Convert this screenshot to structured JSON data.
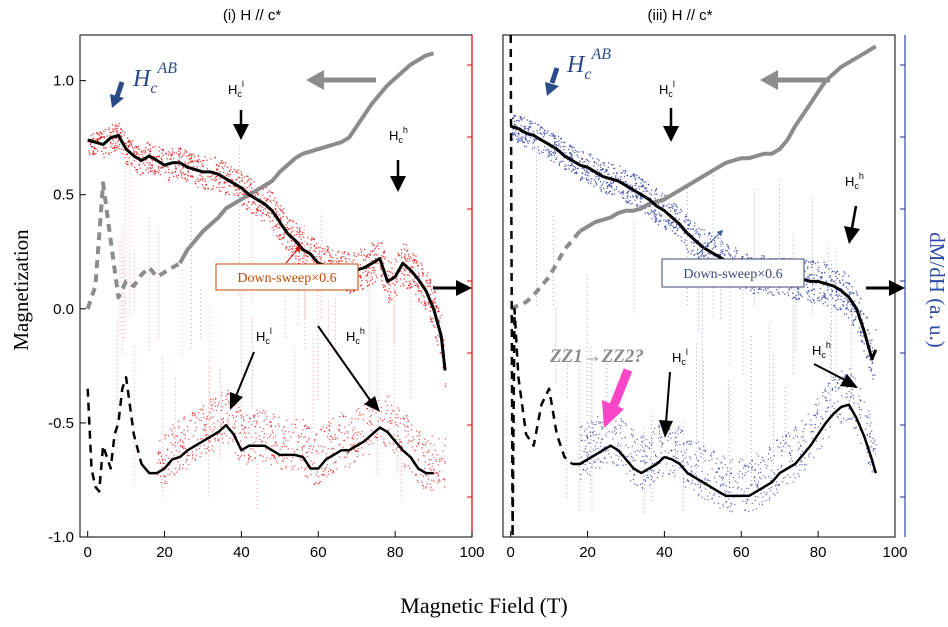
{
  "figure": {
    "xlabel": "Magnetic Field (T)",
    "ylabel_left": "Magnetization",
    "ylabel_right": "dM/dH (a. u.)"
  },
  "colors": {
    "red_scatter": "#e00000",
    "blue_scatter": "#1a2a9a",
    "gray_curve": "#8c8c8c",
    "black_curve": "#000000",
    "blue_text": "#2a4a8a",
    "magenta_arrow": "#ff44c8",
    "down_sweep_left_text": "#c04a00",
    "down_sweep_right_text": "#3a4a7a"
  },
  "chart_data": [
    {
      "panel": "left",
      "type": "line",
      "title": "(i) H // c*",
      "xlim": [
        -2,
        100
      ],
      "ylim": [
        -1.0,
        1.2
      ],
      "xticks": [
        0,
        20,
        40,
        60,
        80,
        100
      ],
      "yticks": [
        -1.0,
        -0.5,
        0.0,
        0.5,
        1.0
      ],
      "ytick_labels": [
        "-1.0",
        "-0.5",
        "0.0",
        "0.5",
        "1.0"
      ],
      "series": [
        {
          "style": "gray magnetization (up-sweep), dashed at low field",
          "x": [
            0,
            2,
            4,
            6,
            8,
            10,
            12,
            14,
            16,
            18,
            20,
            22,
            24,
            26,
            28,
            30,
            32,
            34,
            36,
            38,
            40,
            42,
            44,
            46,
            48,
            50,
            52,
            54,
            56,
            58,
            60,
            62,
            64,
            66,
            68,
            70,
            72,
            74,
            76,
            78,
            80,
            82,
            84,
            86,
            88,
            90
          ],
          "y": [
            0.0,
            0.1,
            0.55,
            0.3,
            0.05,
            0.12,
            0.1,
            0.15,
            0.18,
            0.14,
            0.16,
            0.18,
            0.2,
            0.26,
            0.3,
            0.34,
            0.37,
            0.4,
            0.44,
            0.46,
            0.48,
            0.5,
            0.52,
            0.54,
            0.56,
            0.6,
            0.63,
            0.66,
            0.68,
            0.69,
            0.7,
            0.71,
            0.72,
            0.73,
            0.75,
            0.8,
            0.85,
            0.9,
            0.94,
            0.98,
            1.01,
            1.04,
            1.07,
            1.09,
            1.11,
            1.12
          ]
        },
        {
          "style": "black down-sweep x0.6 (smoothed)",
          "x": [
            0,
            2,
            4,
            6,
            8,
            10,
            12,
            14,
            16,
            18,
            20,
            22,
            24,
            26,
            28,
            30,
            32,
            34,
            36,
            38,
            40,
            42,
            44,
            46,
            48,
            50,
            52,
            54,
            56,
            58,
            60,
            62,
            64,
            66,
            68,
            70,
            72,
            74,
            76,
            78,
            80,
            82,
            84,
            86,
            88,
            90,
            92,
            93
          ],
          "y": [
            0.74,
            0.73,
            0.72,
            0.75,
            0.76,
            0.7,
            0.67,
            0.65,
            0.67,
            0.65,
            0.63,
            0.64,
            0.64,
            0.62,
            0.61,
            0.6,
            0.6,
            0.59,
            0.57,
            0.55,
            0.53,
            0.5,
            0.48,
            0.46,
            0.43,
            0.38,
            0.33,
            0.3,
            0.26,
            0.24,
            0.2,
            0.19,
            0.18,
            0.17,
            0.16,
            0.17,
            0.18,
            0.2,
            0.22,
            0.12,
            0.14,
            0.2,
            0.17,
            0.13,
            0.08,
            0.0,
            -0.12,
            -0.27
          ]
        },
        {
          "style": "black dM/dH (dashed at low field)",
          "x": [
            0,
            1,
            2,
            3,
            4,
            5,
            6,
            7,
            8,
            9,
            10,
            12,
            14,
            16,
            18,
            20,
            22,
            24,
            26,
            28,
            30,
            32,
            34,
            36,
            38,
            40,
            42,
            44,
            46,
            48,
            50,
            52,
            54,
            56,
            58,
            60,
            62,
            64,
            66,
            68,
            70,
            72,
            74,
            76,
            78,
            80,
            82,
            84,
            86,
            88,
            90
          ],
          "y": [
            -0.35,
            -0.7,
            -0.78,
            -0.8,
            -0.6,
            -0.65,
            -0.7,
            -0.55,
            -0.5,
            -0.35,
            -0.3,
            -0.55,
            -0.68,
            -0.72,
            -0.72,
            -0.7,
            -0.66,
            -0.65,
            -0.62,
            -0.6,
            -0.58,
            -0.56,
            -0.54,
            -0.51,
            -0.55,
            -0.62,
            -0.6,
            -0.6,
            -0.6,
            -0.62,
            -0.64,
            -0.64,
            -0.64,
            -0.65,
            -0.7,
            -0.7,
            -0.66,
            -0.64,
            -0.62,
            -0.62,
            -0.6,
            -0.58,
            -0.55,
            -0.52,
            -0.54,
            -0.58,
            -0.62,
            -0.65,
            -0.7,
            -0.72,
            -0.72
          ]
        }
      ],
      "annotations": [
        {
          "text": "Down-sweep×0.6"
        },
        {
          "text_main": "H",
          "text_sub": "c",
          "text_sup": "AB"
        },
        {
          "text_main": "H",
          "text_sub": "c",
          "text_sup": "l"
        },
        {
          "text_main": "H",
          "text_sub": "c",
          "text_sup": "h"
        }
      ]
    },
    {
      "panel": "right",
      "type": "line",
      "title": "(iii) H // c*",
      "xlim": [
        -2,
        100
      ],
      "ylim": [
        -1.0,
        1.2
      ],
      "xticks": [
        0,
        20,
        40,
        60,
        80,
        100
      ],
      "series": [
        {
          "style": "gray magnetization (up-sweep), dashed at low field",
          "x": [
            0,
            4,
            6,
            8,
            10,
            12,
            14,
            16,
            18,
            20,
            22,
            24,
            26,
            28,
            30,
            32,
            34,
            36,
            38,
            40,
            42,
            44,
            46,
            48,
            50,
            52,
            54,
            56,
            58,
            60,
            62,
            64,
            66,
            68,
            70,
            72,
            74,
            76,
            78,
            80,
            82,
            84,
            86,
            88,
            90,
            92,
            94,
            95
          ],
          "y": [
            0.0,
            0.03,
            0.06,
            0.1,
            0.14,
            0.2,
            0.26,
            0.3,
            0.34,
            0.36,
            0.38,
            0.39,
            0.4,
            0.42,
            0.43,
            0.43,
            0.44,
            0.46,
            0.47,
            0.48,
            0.5,
            0.52,
            0.54,
            0.56,
            0.58,
            0.6,
            0.62,
            0.64,
            0.65,
            0.66,
            0.66,
            0.67,
            0.68,
            0.68,
            0.7,
            0.74,
            0.8,
            0.85,
            0.9,
            0.95,
            1.0,
            1.03,
            1.06,
            1.08,
            1.1,
            1.12,
            1.14,
            1.15
          ]
        },
        {
          "style": "black down-sweep x0.6 (smoothed)",
          "x": [
            0,
            2,
            4,
            6,
            8,
            10,
            12,
            14,
            16,
            18,
            20,
            22,
            24,
            26,
            28,
            30,
            32,
            34,
            36,
            38,
            40,
            42,
            44,
            46,
            48,
            50,
            52,
            54,
            56,
            58,
            60,
            62,
            64,
            66,
            68,
            70,
            72,
            74,
            76,
            78,
            80,
            82,
            84,
            86,
            88,
            90,
            92,
            94,
            95
          ],
          "y": [
            0.8,
            0.79,
            0.77,
            0.76,
            0.74,
            0.72,
            0.7,
            0.67,
            0.65,
            0.63,
            0.62,
            0.6,
            0.58,
            0.57,
            0.56,
            0.54,
            0.52,
            0.5,
            0.48,
            0.45,
            0.43,
            0.4,
            0.37,
            0.33,
            0.3,
            0.27,
            0.25,
            0.23,
            0.21,
            0.19,
            0.17,
            0.16,
            0.15,
            0.15,
            0.14,
            0.14,
            0.14,
            0.13,
            0.13,
            0.12,
            0.12,
            0.11,
            0.1,
            0.08,
            0.05,
            0.0,
            -0.1,
            -0.22,
            -0.18
          ]
        },
        {
          "style": "black dM/dH (dashed at low field)",
          "x": [
            0,
            0.5,
            1,
            2,
            4,
            6,
            8,
            10,
            12,
            14,
            16,
            18,
            20,
            22,
            24,
            26,
            28,
            30,
            32,
            34,
            36,
            38,
            40,
            42,
            44,
            46,
            48,
            50,
            52,
            54,
            56,
            58,
            60,
            62,
            64,
            66,
            68,
            70,
            72,
            74,
            76,
            78,
            80,
            82,
            84,
            86,
            88,
            90,
            92,
            94,
            95
          ],
          "y": [
            1.2,
            -1.0,
            0.0,
            -0.3,
            -0.55,
            -0.6,
            -0.42,
            -0.35,
            -0.55,
            -0.65,
            -0.68,
            -0.68,
            -0.66,
            -0.64,
            -0.62,
            -0.6,
            -0.62,
            -0.66,
            -0.7,
            -0.72,
            -0.7,
            -0.68,
            -0.65,
            -0.66,
            -0.68,
            -0.72,
            -0.74,
            -0.76,
            -0.78,
            -0.8,
            -0.82,
            -0.82,
            -0.82,
            -0.82,
            -0.8,
            -0.78,
            -0.76,
            -0.72,
            -0.7,
            -0.68,
            -0.64,
            -0.6,
            -0.55,
            -0.5,
            -0.46,
            -0.43,
            -0.42,
            -0.48,
            -0.56,
            -0.66,
            -0.72
          ]
        }
      ],
      "annotations": [
        {
          "text": "Down-sweep×0.6"
        },
        {
          "text": "ZZ1→ZZ2?"
        },
        {
          "text_main": "H",
          "text_sub": "c",
          "text_sup": "AB"
        },
        {
          "text_main": "H",
          "text_sub": "c",
          "text_sup": "l"
        },
        {
          "text_main": "H",
          "text_sub": "c",
          "text_sup": "h"
        }
      ]
    }
  ]
}
